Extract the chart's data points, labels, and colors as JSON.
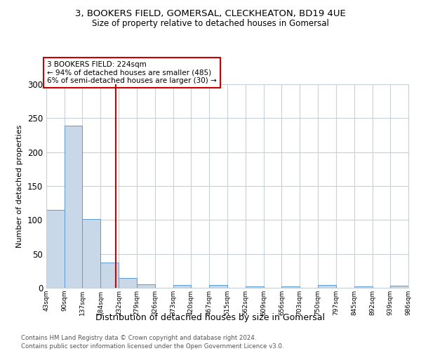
{
  "title1": "3, BOOKERS FIELD, GOMERSAL, CLECKHEATON, BD19 4UE",
  "title2": "Size of property relative to detached houses in Gomersal",
  "xlabel": "Distribution of detached houses by size in Gomersal",
  "ylabel": "Number of detached properties",
  "footnote1": "Contains HM Land Registry data © Crown copyright and database right 2024.",
  "footnote2": "Contains public sector information licensed under the Open Government Licence v3.0.",
  "annotation_line1": "3 BOOKERS FIELD: 224sqm",
  "annotation_line2": "← 94% of detached houses are smaller (485)",
  "annotation_line3": "6% of semi-detached houses are larger (30) →",
  "property_size": 224,
  "bar_values": [
    115,
    239,
    101,
    37,
    14,
    5,
    0,
    4,
    0,
    4,
    0,
    2,
    0,
    2,
    0,
    4,
    0,
    2,
    0,
    3
  ],
  "bin_edges": [
    43,
    90,
    137,
    184,
    232,
    279,
    326,
    373,
    420,
    467,
    515,
    562,
    609,
    656,
    703,
    750,
    797,
    845,
    892,
    939,
    986
  ],
  "bin_labels": [
    "43sqm",
    "90sqm",
    "137sqm",
    "184sqm",
    "232sqm",
    "279sqm",
    "326sqm",
    "373sqm",
    "420sqm",
    "467sqm",
    "515sqm",
    "562sqm",
    "609sqm",
    "656sqm",
    "703sqm",
    "750sqm",
    "797sqm",
    "845sqm",
    "892sqm",
    "939sqm",
    "986sqm"
  ],
  "bar_color": "#c8d8e8",
  "bar_edge_color": "#5b9bd5",
  "vline_color": "#cc0000",
  "annotation_box_color": "#cc0000",
  "background_color": "#ffffff",
  "grid_color": "#c8d0d8",
  "ylim": [
    0,
    300
  ],
  "yticks": [
    0,
    50,
    100,
    150,
    200,
    250,
    300
  ]
}
